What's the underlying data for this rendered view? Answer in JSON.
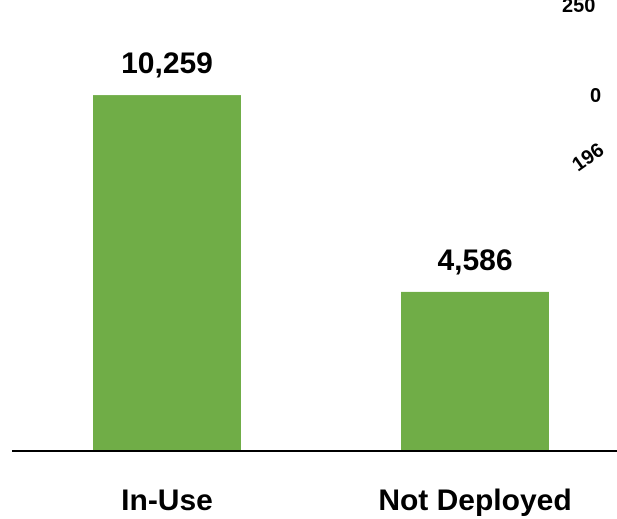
{
  "chart_data": {
    "type": "bar",
    "categories": [
      "In-Use",
      "Not Deployed"
    ],
    "values": [
      10259,
      4586
    ],
    "value_labels": [
      "10,259",
      "4,586"
    ],
    "title": "",
    "xlabel": "",
    "ylabel": "",
    "ylim": [
      0,
      13000
    ],
    "grid": false,
    "legend": "none",
    "bar_color": "#70ad47",
    "axis_color": "#000000"
  },
  "partial_chart": {
    "tick_labels": [
      "250",
      "0"
    ],
    "x_label": "196"
  }
}
